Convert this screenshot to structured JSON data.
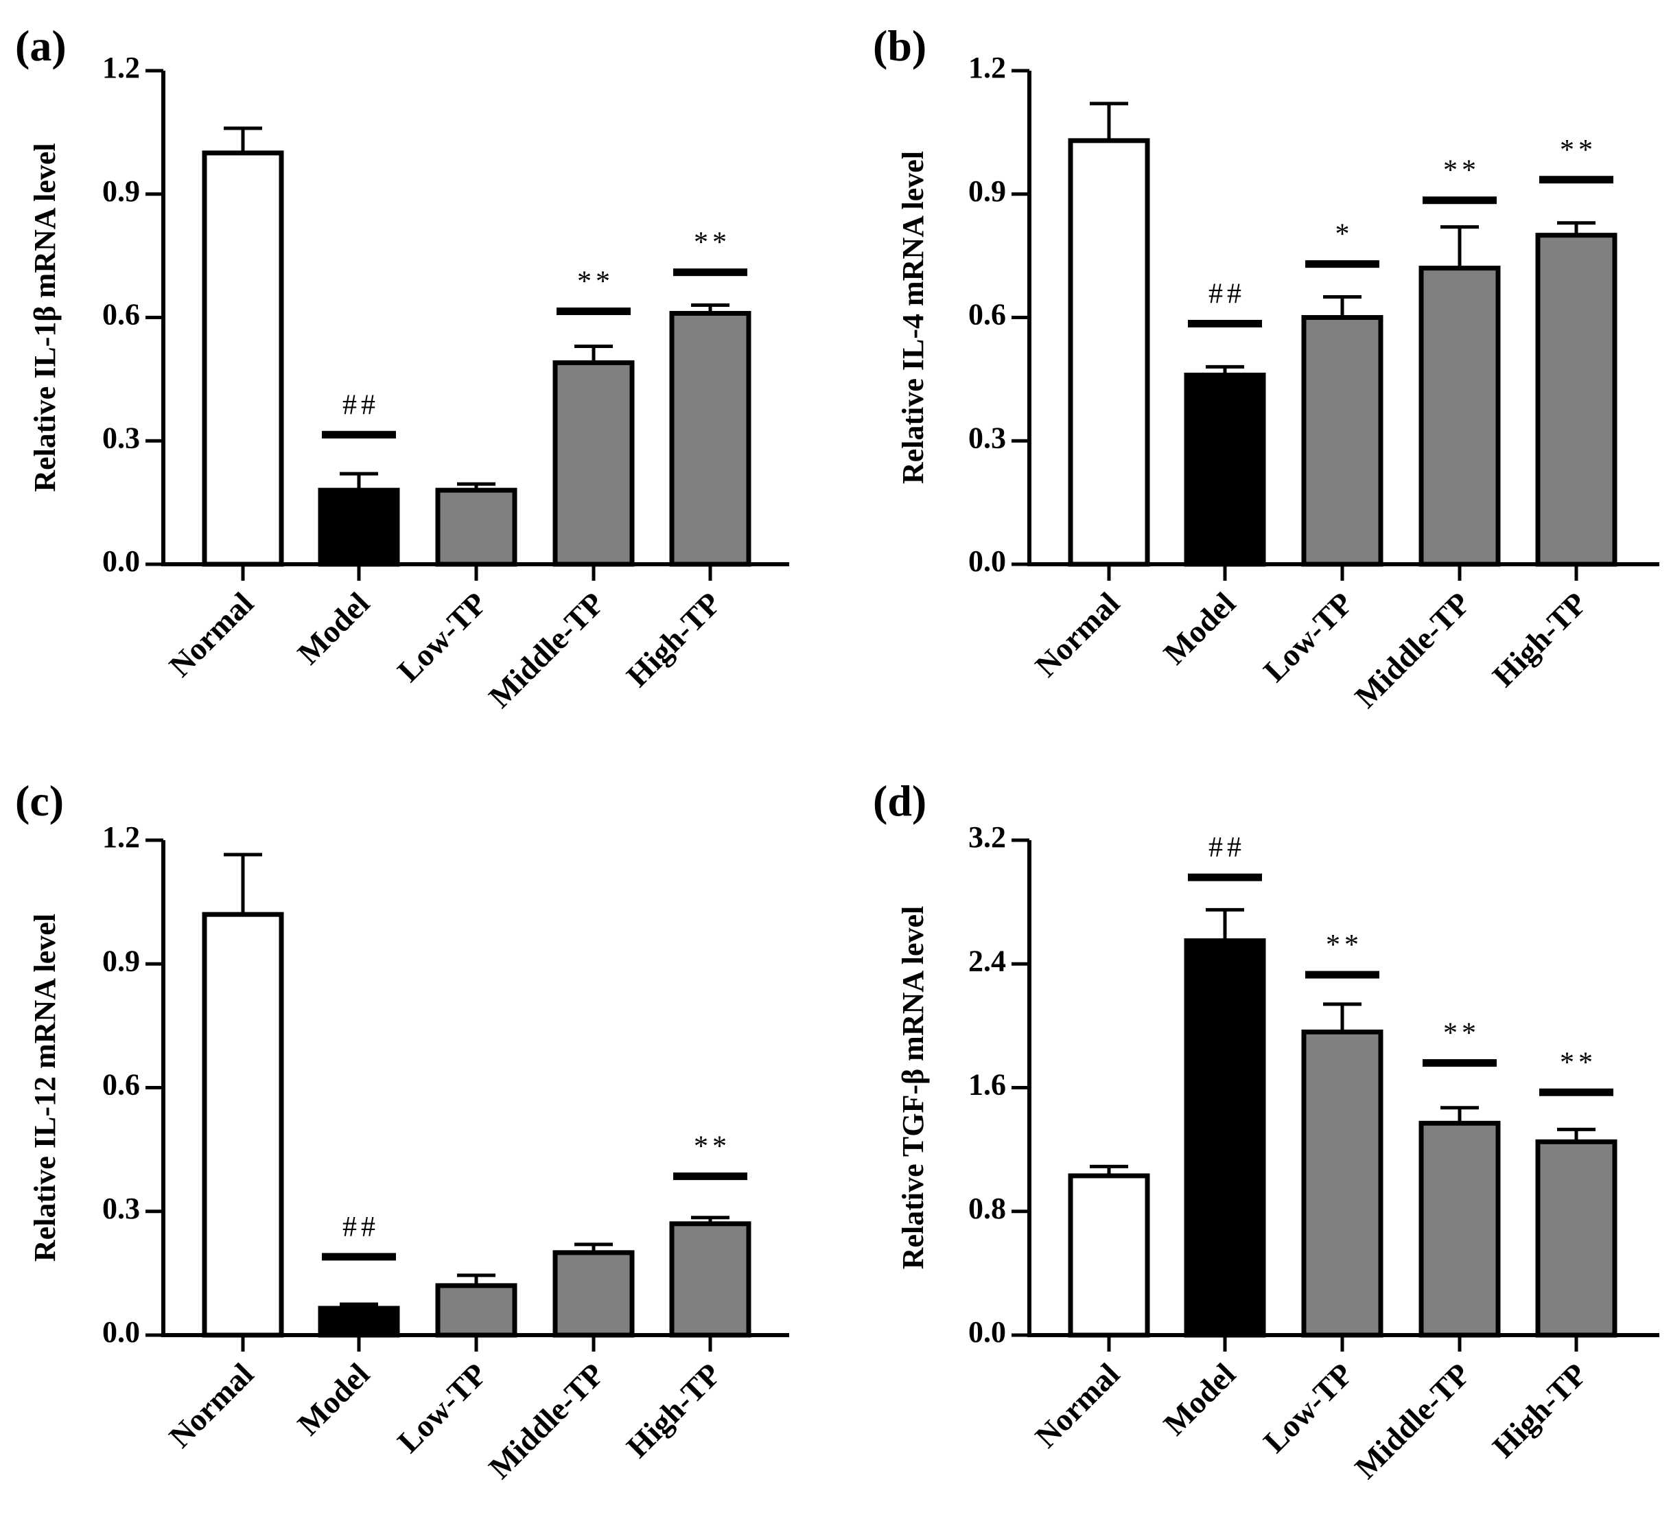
{
  "chart_data": [
    {
      "type": "bar",
      "panel": "(a)",
      "ylabel": "Relative IL-1β mRNA level",
      "categories": [
        "Normal",
        "Model",
        "Low-TP",
        "Middle-TP",
        "High-TP"
      ],
      "values": [
        1.0,
        0.18,
        0.18,
        0.49,
        0.61
      ],
      "errors": [
        0.06,
        0.04,
        0.015,
        0.04,
        0.02
      ],
      "fills": [
        "#ffffff",
        "#000000",
        "#808080",
        "#808080",
        "#808080"
      ],
      "significance": [
        "",
        "##",
        "",
        "**",
        "**"
      ],
      "sig_levels": [
        null,
        0.315,
        null,
        0.615,
        0.71
      ],
      "ylim": [
        0,
        1.2
      ],
      "yticks": [
        "0.0",
        "0.3",
        "0.6",
        "0.9",
        "1.2"
      ]
    },
    {
      "type": "bar",
      "panel": "(b)",
      "ylabel": "Relative IL-4 mRNA level",
      "categories": [
        "Normal",
        "Model",
        "Low-TP",
        "Middle-TP",
        "High-TP"
      ],
      "values": [
        1.03,
        0.46,
        0.6,
        0.72,
        0.8
      ],
      "errors": [
        0.09,
        0.02,
        0.05,
        0.1,
        0.03
      ],
      "fills": [
        "#ffffff",
        "#000000",
        "#808080",
        "#808080",
        "#808080"
      ],
      "significance": [
        "",
        "##",
        "*",
        "**",
        "**"
      ],
      "sig_levels": [
        null,
        0.585,
        0.73,
        0.885,
        0.935
      ],
      "ylim": [
        0,
        1.2
      ],
      "yticks": [
        "0.0",
        "0.3",
        "0.6",
        "0.9",
        "1.2"
      ]
    },
    {
      "type": "bar",
      "panel": "(c)",
      "ylabel": "Relative IL-12 mRNA level",
      "categories": [
        "Normal",
        "Model",
        "Low-TP",
        "Middle-TP",
        "High-TP"
      ],
      "values": [
        1.02,
        0.065,
        0.12,
        0.2,
        0.27
      ],
      "errors": [
        0.145,
        0.01,
        0.025,
        0.02,
        0.015
      ],
      "fills": [
        "#ffffff",
        "#000000",
        "#808080",
        "#808080",
        "#808080"
      ],
      "significance": [
        "",
        "##",
        "",
        "",
        "**"
      ],
      "sig_levels": [
        null,
        0.19,
        null,
        null,
        0.385
      ],
      "ylim": [
        0,
        1.2
      ],
      "yticks": [
        "0.0",
        "0.3",
        "0.6",
        "0.9",
        "1.2"
      ]
    },
    {
      "type": "bar",
      "panel": "(d)",
      "ylabel": "Relative TGF-β mRNA level",
      "categories": [
        "Normal",
        "Model",
        "Low-TP",
        "Middle-TP",
        "High-TP"
      ],
      "values": [
        1.03,
        2.55,
        1.96,
        1.37,
        1.25
      ],
      "errors": [
        0.06,
        0.2,
        0.18,
        0.1,
        0.08
      ],
      "fills": [
        "#ffffff",
        "#000000",
        "#808080",
        "#808080",
        "#808080"
      ],
      "significance": [
        "",
        "##",
        "**",
        "**",
        "**"
      ],
      "sig_levels": [
        null,
        2.96,
        2.33,
        1.76,
        1.57
      ],
      "ylim": [
        0,
        3.2
      ],
      "yticks": [
        "0.0",
        "0.8",
        "1.6",
        "2.4",
        "3.2"
      ]
    }
  ]
}
